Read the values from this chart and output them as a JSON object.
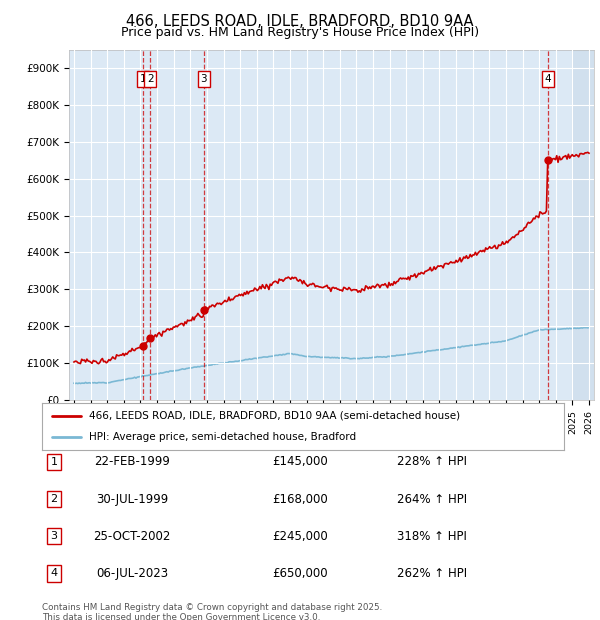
{
  "title": "466, LEEDS ROAD, IDLE, BRADFORD, BD10 9AA",
  "subtitle": "Price paid vs. HM Land Registry's House Price Index (HPI)",
  "ylim": [
    0,
    950000
  ],
  "yticks": [
    0,
    100000,
    200000,
    300000,
    400000,
    500000,
    600000,
    700000,
    800000,
    900000
  ],
  "ytick_labels": [
    "£0",
    "£100K",
    "£200K",
    "£300K",
    "£400K",
    "£500K",
    "£600K",
    "£700K",
    "£800K",
    "£900K"
  ],
  "xlim_start": 1994.7,
  "xlim_end": 2026.3,
  "plot_bg_color": "#dce9f5",
  "grid_color": "#ffffff",
  "legend_line1": "466, LEEDS ROAD, IDLE, BRADFORD, BD10 9AA (semi-detached house)",
  "legend_line2": "HPI: Average price, semi-detached house, Bradford",
  "sale_dates_num": [
    1999.14,
    1999.58,
    2002.82,
    2023.51
  ],
  "sale_prices": [
    145000,
    168000,
    245000,
    650000
  ],
  "sale_labels": [
    "1",
    "2",
    "3",
    "4"
  ],
  "table_entries": [
    {
      "num": "1",
      "date": "22-FEB-1999",
      "price": "£145,000",
      "hpi": "228% ↑ HPI"
    },
    {
      "num": "2",
      "date": "30-JUL-1999",
      "price": "£168,000",
      "hpi": "264% ↑ HPI"
    },
    {
      "num": "3",
      "date": "25-OCT-2002",
      "price": "£245,000",
      "hpi": "318% ↑ HPI"
    },
    {
      "num": "4",
      "date": "06-JUL-2023",
      "price": "£650,000",
      "hpi": "262% ↑ HPI"
    }
  ],
  "footer_text": "Contains HM Land Registry data © Crown copyright and database right 2025.\nThis data is licensed under the Open Government Licence v3.0.",
  "red_line_color": "#cc0000",
  "hpi_line_color": "#7ab8d4"
}
